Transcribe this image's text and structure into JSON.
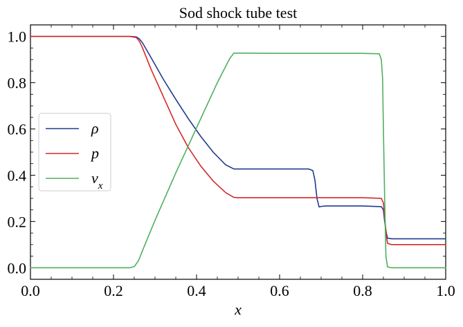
{
  "chart_data": {
    "type": "line",
    "title": "Sod shock tube test",
    "xlabel": "x",
    "ylabel": "",
    "xlim": [
      0.0,
      1.0
    ],
    "ylim": [
      -0.05,
      1.05
    ],
    "xticks": [
      0.0,
      0.2,
      0.4,
      0.6,
      0.8,
      1.0
    ],
    "xtick_labels": [
      "0.0",
      "0.2",
      "0.4",
      "0.6",
      "0.8",
      "1.0"
    ],
    "yticks": [
      0.0,
      0.2,
      0.4,
      0.6,
      0.8,
      1.0
    ],
    "ytick_labels": [
      "0.0",
      "0.2",
      "0.4",
      "0.6",
      "0.8",
      "1.0"
    ],
    "grid": false,
    "legend_position": "center-left",
    "series": [
      {
        "name": "ρ",
        "color": "#1f3a8f",
        "x": [
          0.0,
          0.24,
          0.255,
          0.262,
          0.27,
          0.29,
          0.32,
          0.35,
          0.38,
          0.41,
          0.44,
          0.47,
          0.49,
          0.5,
          0.6,
          0.67,
          0.68,
          0.685,
          0.69,
          0.695,
          0.7,
          0.71,
          0.72,
          0.8,
          0.845,
          0.85,
          0.853,
          0.857,
          0.86,
          0.87,
          0.9,
          1.0
        ],
        "y": [
          1.0,
          1.0,
          0.998,
          0.99,
          0.972,
          0.91,
          0.815,
          0.728,
          0.645,
          0.568,
          0.5,
          0.445,
          0.427,
          0.427,
          0.427,
          0.427,
          0.42,
          0.38,
          0.3,
          0.263,
          0.265,
          0.267,
          0.267,
          0.267,
          0.264,
          0.25,
          0.2,
          0.15,
          0.128,
          0.125,
          0.125,
          0.125
        ]
      },
      {
        "name": "p",
        "color": "#d62728",
        "x": [
          0.0,
          0.24,
          0.255,
          0.262,
          0.27,
          0.29,
          0.32,
          0.35,
          0.38,
          0.41,
          0.44,
          0.47,
          0.49,
          0.5,
          0.6,
          0.7,
          0.8,
          0.845,
          0.85,
          0.853,
          0.857,
          0.86,
          0.87,
          0.9,
          1.0
        ],
        "y": [
          1.0,
          1.0,
          0.995,
          0.98,
          0.95,
          0.86,
          0.74,
          0.62,
          0.52,
          0.44,
          0.375,
          0.325,
          0.304,
          0.303,
          0.303,
          0.303,
          0.303,
          0.3,
          0.28,
          0.22,
          0.14,
          0.105,
          0.1,
          0.1,
          0.1
        ]
      },
      {
        "name": "v_x",
        "color": "#4daf5f",
        "x": [
          0.0,
          0.24,
          0.25,
          0.26,
          0.27,
          0.3,
          0.35,
          0.4,
          0.45,
          0.48,
          0.49,
          0.5,
          0.6,
          0.7,
          0.8,
          0.84,
          0.845,
          0.848,
          0.85,
          0.853,
          0.856,
          0.86,
          0.87,
          1.0
        ],
        "y": [
          0.0,
          0.0,
          0.005,
          0.03,
          0.075,
          0.205,
          0.41,
          0.605,
          0.8,
          0.905,
          0.928,
          0.928,
          0.927,
          0.927,
          0.927,
          0.925,
          0.9,
          0.82,
          0.6,
          0.3,
          0.05,
          0.003,
          0.0,
          0.0
        ]
      }
    ]
  }
}
